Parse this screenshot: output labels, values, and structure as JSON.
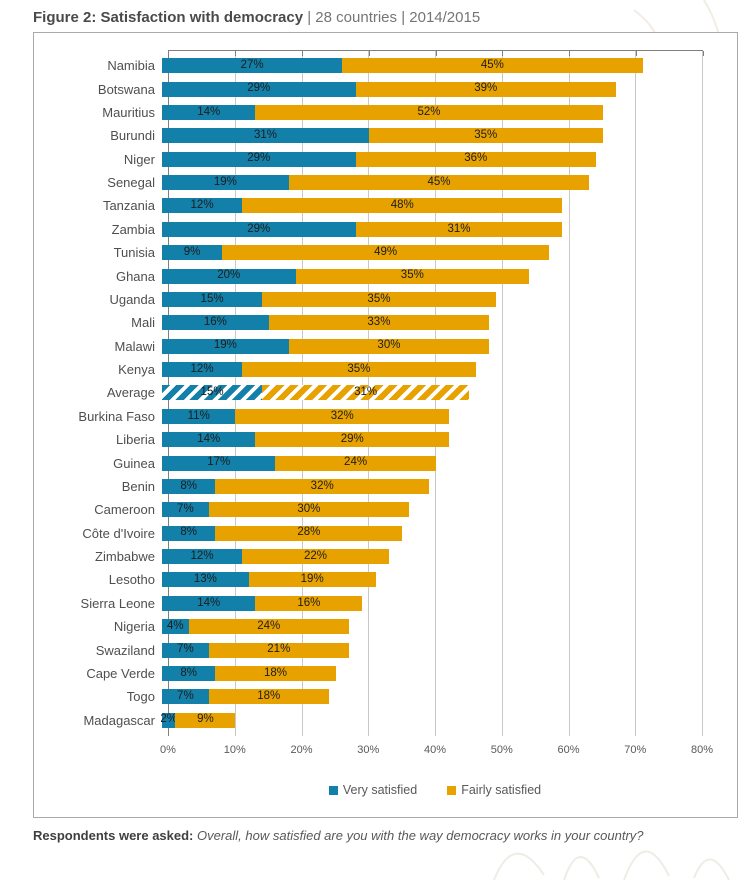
{
  "title": {
    "bold": "Figure 2: Satisfaction with democracy",
    "rest": " | 28 countries | 2014/2015"
  },
  "chart_data": {
    "type": "bar",
    "orientation": "horizontal-stacked",
    "categories": [
      "Namibia",
      "Botswana",
      "Mauritius",
      "Burundi",
      "Niger",
      "Senegal",
      "Tanzania",
      "Zambia",
      "Tunisia",
      "Ghana",
      "Uganda",
      "Mali",
      "Malawi",
      "Kenya",
      "Average",
      "Burkina Faso",
      "Liberia",
      "Guinea",
      "Benin",
      "Cameroon",
      "Côte d'Ivoire",
      "Zimbabwe",
      "Lesotho",
      "Sierra Leone",
      "Nigeria",
      "Swaziland",
      "Cape Verde",
      "Togo",
      "Madagascar"
    ],
    "series": [
      {
        "name": "Very satisfied",
        "color": "#1380a9",
        "values": [
          27,
          29,
          14,
          31,
          29,
          19,
          12,
          29,
          9,
          20,
          15,
          16,
          19,
          12,
          15,
          11,
          14,
          17,
          8,
          7,
          8,
          12,
          13,
          14,
          4,
          7,
          8,
          7,
          2
        ]
      },
      {
        "name": "Fairly satisfied",
        "color": "#e8a200",
        "values": [
          45,
          39,
          52,
          35,
          36,
          45,
          48,
          31,
          49,
          35,
          35,
          33,
          30,
          35,
          31,
          32,
          29,
          24,
          32,
          30,
          28,
          22,
          19,
          16,
          24,
          21,
          18,
          18,
          9
        ]
      }
    ],
    "value_label_suffix": "%",
    "hatched_category": "Average",
    "xlim": [
      0,
      80
    ],
    "x_ticks": [
      "0%",
      "10%",
      "20%",
      "30%",
      "40%",
      "50%",
      "60%",
      "70%",
      "80%"
    ],
    "grid": "vertical",
    "legend_position": "bottom"
  },
  "footnote": {
    "lead": "Respondents were asked:",
    "question": " Overall, how satisfied are you with the way democracy works in your country?"
  },
  "colors": {
    "very_satisfied": "#1380a9",
    "fairly_satisfied": "#e8a200",
    "axis_line": "#7f7f7f",
    "gridline": "#c9c9c9",
    "frame_border": "#a9a9a9"
  }
}
